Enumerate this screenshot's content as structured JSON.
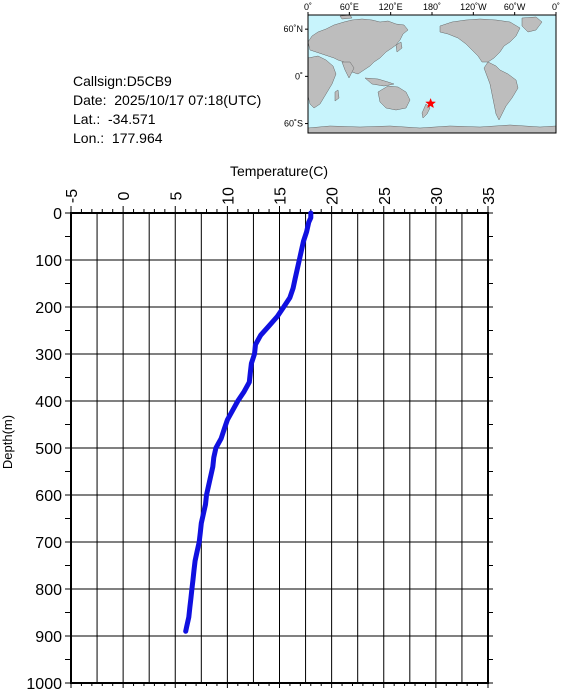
{
  "info": {
    "callsign": "Callsign:D5CB9",
    "date": "Date:  2025/10/17 07:18(UTC)",
    "lat": "Lat.:  -34.571",
    "lon": "Lon.:  177.964"
  },
  "map": {
    "top_labels": [
      "0˚",
      "60˚E",
      "120˚E",
      "180˚",
      "120˚W",
      "60˚W",
      "0˚"
    ],
    "left_labels": [
      "60˚N",
      "0˚",
      "60˚S"
    ],
    "ocean_color": "#c8f4fc",
    "land_color": "#bdbdbd",
    "marker": {
      "lat": -34.571,
      "lon": 177.964,
      "color": "#ff0000",
      "icon": "star-icon"
    }
  },
  "chart_data": {
    "type": "line",
    "xlabel": "Temperature(C)",
    "ylabel": "Depth(m)",
    "xlim": [
      -5,
      35
    ],
    "ylim": [
      1000,
      0
    ],
    "x_ticks": [
      "-5",
      "0",
      "5",
      "10",
      "15",
      "20",
      "25",
      "30",
      "35"
    ],
    "y_ticks": [
      "0",
      "100",
      "200",
      "300",
      "400",
      "500",
      "600",
      "700",
      "800",
      "900",
      "1000"
    ],
    "grid": true,
    "series_color": "#1010e0",
    "points": [
      [
        18.0,
        0
      ],
      [
        18.0,
        10
      ],
      [
        17.8,
        20
      ],
      [
        17.6,
        40
      ],
      [
        17.3,
        60
      ],
      [
        17.1,
        80
      ],
      [
        16.9,
        100
      ],
      [
        16.7,
        120
      ],
      [
        16.5,
        140
      ],
      [
        16.3,
        160
      ],
      [
        16.0,
        180
      ],
      [
        15.4,
        200
      ],
      [
        14.8,
        220
      ],
      [
        14.0,
        240
      ],
      [
        13.2,
        260
      ],
      [
        12.7,
        280
      ],
      [
        12.6,
        300
      ],
      [
        12.3,
        320
      ],
      [
        12.2,
        340
      ],
      [
        12.1,
        360
      ],
      [
        11.6,
        380
      ],
      [
        11.0,
        400
      ],
      [
        10.5,
        420
      ],
      [
        10.0,
        440
      ],
      [
        9.7,
        460
      ],
      [
        9.4,
        480
      ],
      [
        8.9,
        500
      ],
      [
        8.7,
        520
      ],
      [
        8.6,
        540
      ],
      [
        8.4,
        560
      ],
      [
        8.2,
        580
      ],
      [
        8.0,
        600
      ],
      [
        7.9,
        620
      ],
      [
        7.7,
        640
      ],
      [
        7.5,
        660
      ],
      [
        7.4,
        680
      ],
      [
        7.3,
        700
      ],
      [
        7.1,
        720
      ],
      [
        6.9,
        740
      ],
      [
        6.8,
        760
      ],
      [
        6.7,
        780
      ],
      [
        6.6,
        800
      ],
      [
        6.5,
        820
      ],
      [
        6.4,
        840
      ],
      [
        6.3,
        860
      ],
      [
        6.1,
        880
      ],
      [
        6.0,
        890
      ]
    ]
  }
}
